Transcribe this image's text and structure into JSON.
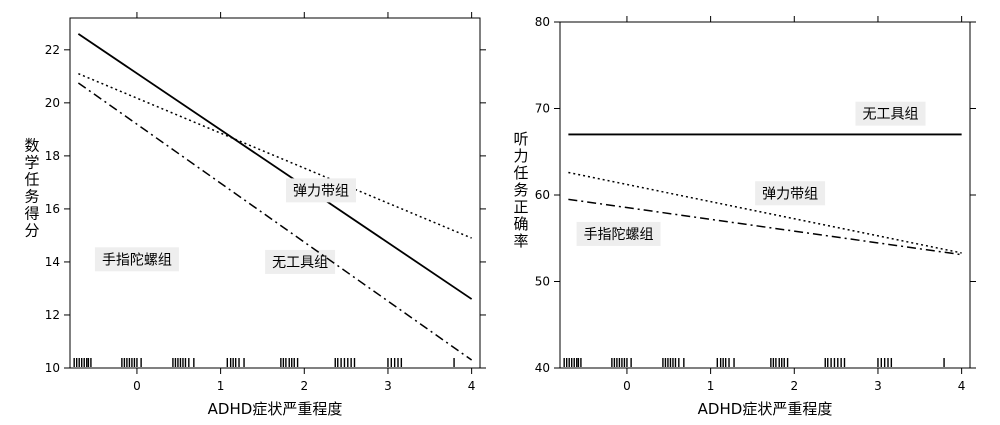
{
  "chart_data": [
    {
      "type": "line",
      "xlabel": "ADHD症状严重程度",
      "ylabel": "数学任务得分",
      "xlim": [
        -0.8,
        4.1
      ],
      "ylim": [
        10,
        23.2
      ],
      "x_ticks": [
        0,
        1,
        2,
        3,
        4
      ],
      "y_ticks": [
        10,
        12,
        14,
        16,
        18,
        20,
        22
      ],
      "grid": false,
      "series": [
        {
          "name": "无工具组",
          "style": "solid",
          "x": [
            -0.7,
            4.0
          ],
          "y": [
            22.6,
            12.6
          ],
          "label_at": [
            1.95,
            14.0
          ]
        },
        {
          "name": "弹力带组",
          "style": "dotted",
          "x": [
            -0.7,
            4.0
          ],
          "y": [
            21.1,
            14.9
          ],
          "label_at": [
            2.2,
            16.7
          ]
        },
        {
          "name": "手指陀螺组",
          "style": "dashdot",
          "x": [
            -0.7,
            4.0
          ],
          "y": [
            20.75,
            10.3
          ],
          "label_at": [
            0.0,
            14.1
          ]
        }
      ],
      "rug": [
        -0.75,
        -0.72,
        -0.69,
        -0.66,
        -0.63,
        -0.6,
        -0.58,
        -0.55,
        -0.18,
        -0.15,
        -0.12,
        -0.09,
        -0.06,
        -0.03,
        0.0,
        0.05,
        0.43,
        0.46,
        0.49,
        0.52,
        0.55,
        0.58,
        0.62,
        0.68,
        1.08,
        1.12,
        1.15,
        1.18,
        1.22,
        1.28,
        1.72,
        1.75,
        1.78,
        1.82,
        1.85,
        1.88,
        1.92,
        2.37,
        2.4,
        2.44,
        2.48,
        2.52,
        2.56,
        2.6,
        3.0,
        3.04,
        3.08,
        3.12,
        3.16,
        3.79
      ]
    },
    {
      "type": "line",
      "xlabel": "ADHD症状严重程度",
      "ylabel": "听力任务正确率",
      "xlim": [
        -0.8,
        4.1
      ],
      "ylim": [
        40,
        80
      ],
      "x_ticks": [
        0,
        1,
        2,
        3,
        4
      ],
      "y_ticks": [
        40,
        50,
        60,
        70,
        80
      ],
      "grid": false,
      "series": [
        {
          "name": "无工具组",
          "style": "solid",
          "x": [
            -0.7,
            4.0
          ],
          "y": [
            67.0,
            67.0
          ],
          "label_at": [
            3.15,
            69.4
          ]
        },
        {
          "name": "弹力带组",
          "style": "dotted",
          "x": [
            -0.7,
            4.0
          ],
          "y": [
            62.6,
            53.3
          ],
          "label_at": [
            1.95,
            60.2
          ]
        },
        {
          "name": "手指陀螺组",
          "style": "dashdot",
          "x": [
            -0.7,
            4.0
          ],
          "y": [
            59.5,
            53.1
          ],
          "label_at": [
            -0.1,
            55.5
          ]
        }
      ],
      "rug": [
        -0.75,
        -0.72,
        -0.69,
        -0.66,
        -0.63,
        -0.6,
        -0.58,
        -0.55,
        -0.18,
        -0.15,
        -0.12,
        -0.09,
        -0.06,
        -0.03,
        0.0,
        0.05,
        0.43,
        0.46,
        0.49,
        0.52,
        0.55,
        0.58,
        0.62,
        0.68,
        1.08,
        1.12,
        1.15,
        1.18,
        1.22,
        1.28,
        1.72,
        1.75,
        1.78,
        1.82,
        1.85,
        1.88,
        1.92,
        2.37,
        2.4,
        2.44,
        2.48,
        2.52,
        2.56,
        2.6,
        3.0,
        3.04,
        3.08,
        3.12,
        3.16,
        3.79
      ]
    }
  ]
}
